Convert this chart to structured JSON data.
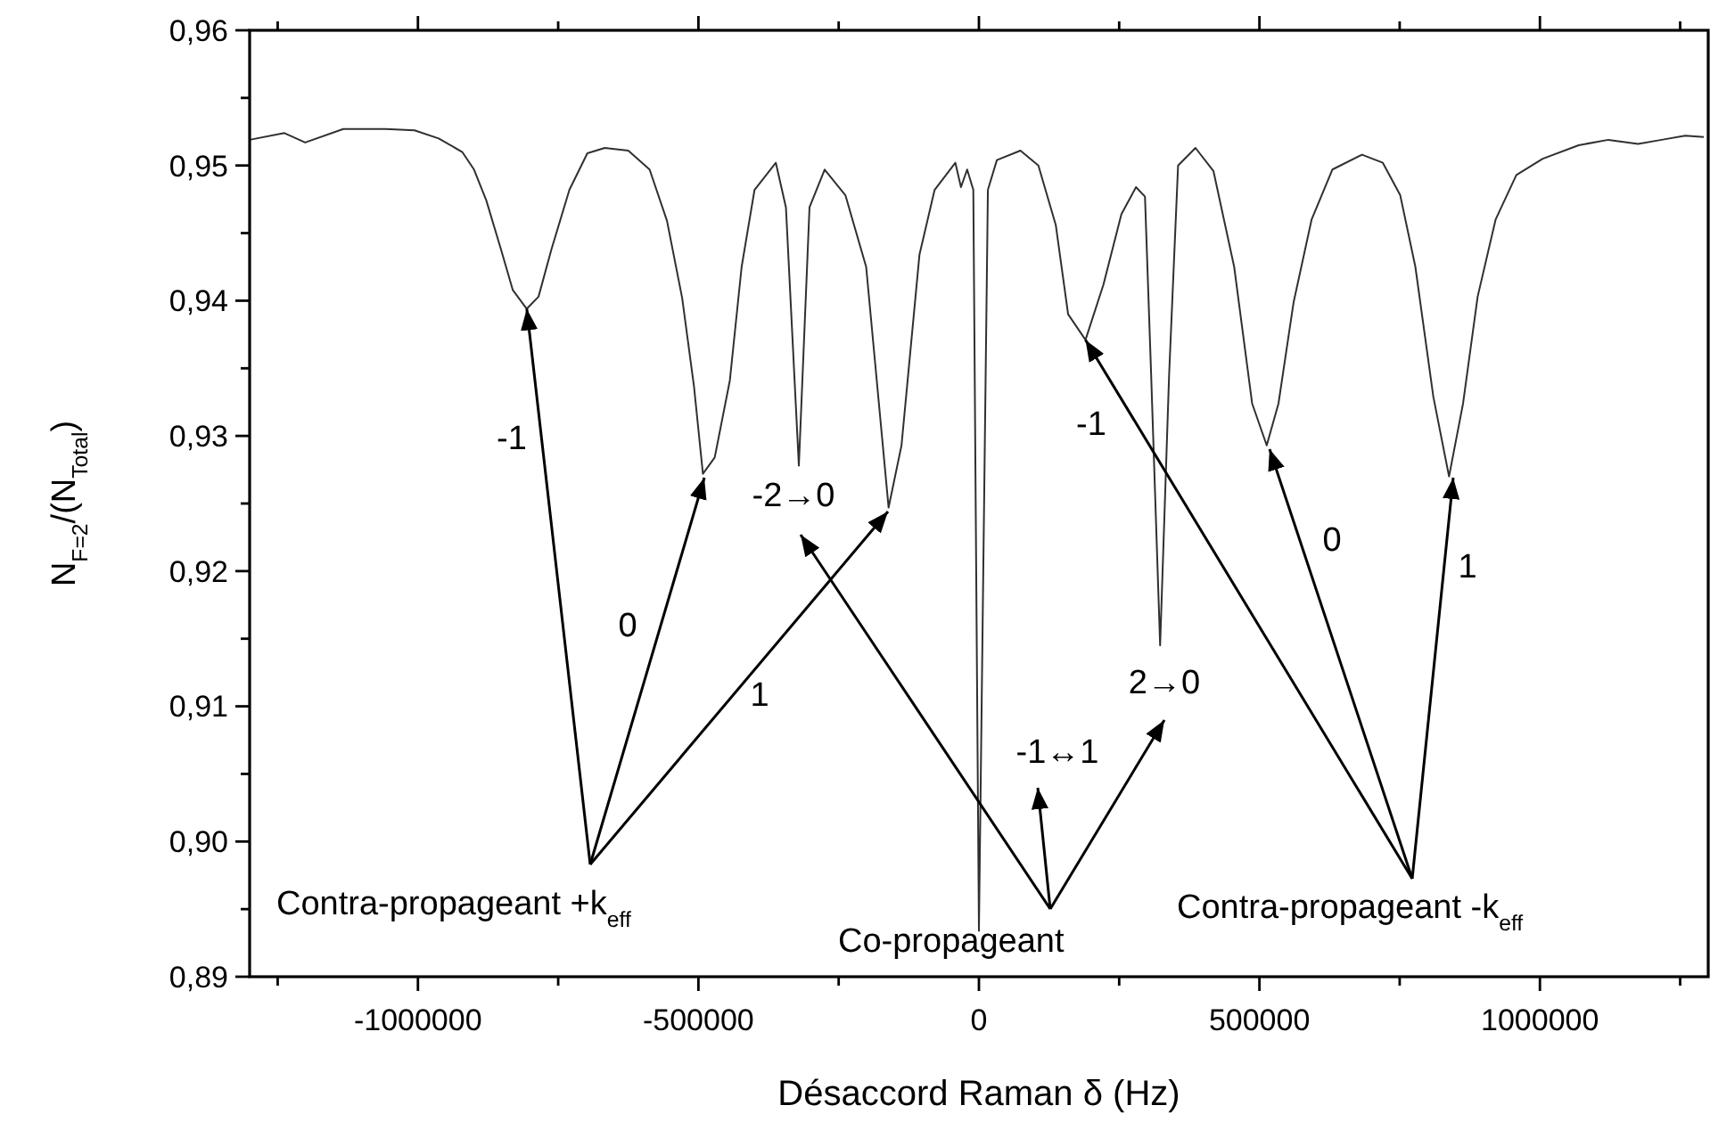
{
  "chart_data": {
    "type": "line",
    "xlabel": "Désaccord Raman δ (Hz)",
    "ylabel": "N$_{F=2}$/(N$_{Total}$)",
    "xlim": [
      -1300000,
      1300000
    ],
    "ylim": [
      0.89,
      0.96
    ],
    "xticks": [
      {
        "value": -1250000,
        "label": null
      },
      -1000000,
      {
        "value": -750000,
        "label": null
      },
      -500000,
      {
        "value": -250000,
        "label": null
      },
      0,
      {
        "value": 250000,
        "label": null
      },
      500000,
      {
        "value": 750000,
        "label": null
      },
      1000000,
      {
        "value": 1250000,
        "label": null
      }
    ],
    "yticks": [
      {
        "value": 0.89,
        "label": "0,89"
      },
      {
        "value": 0.895,
        "label": null
      },
      {
        "value": 0.9,
        "label": "0,90"
      },
      {
        "value": 0.905,
        "label": null
      },
      {
        "value": 0.91,
        "label": "0,91"
      },
      {
        "value": 0.915,
        "label": null
      },
      {
        "value": 0.92,
        "label": "0,92"
      },
      {
        "value": 0.925,
        "label": null
      },
      {
        "value": 0.93,
        "label": "0,93"
      },
      {
        "value": 0.935,
        "label": null
      },
      {
        "value": 0.94,
        "label": "0,94"
      },
      {
        "value": 0.945,
        "label": null
      },
      {
        "value": 0.95,
        "label": "0,95"
      },
      {
        "value": 0.955,
        "label": null
      },
      {
        "value": 0.96,
        "label": "0,96"
      }
    ],
    "grid": false,
    "marker": "none",
    "line_style": "solid",
    "annotations": [
      "-1",
      "0",
      "1",
      "-2→0",
      {
        "text": "Contra-propageant +k$_{eff}$",
        "x": -806000,
        "y": 0.9394
      },
      "Co-propageant",
      "-1↔1",
      "2→0",
      "-1",
      "0",
      "1",
      {
        "text": "Contra-propageant -k$_{eff}$",
        "x": 190000,
        "y": 0.9371
      }
    ],
    "series": [
      {
        "color": "#303030",
        "x": [
          -1300000,
          -1238000,
          -1201000,
          -1133000,
          -1058000,
          -1006000,
          -963000,
          -921000,
          -900000,
          -878000,
          -852000,
          -831000,
          -806000,
          -785000,
          -762000,
          -730000,
          -698000,
          -667000,
          -625000,
          -587000,
          -556000,
          -529000,
          -508000,
          -492000,
          -471000,
          -444000,
          -423000,
          -400000,
          -362000,
          -344000,
          -321000,
          -302000,
          -275000,
          -238000,
          -201000,
          -161000,
          -138000,
          -106000,
          -79000,
          -42000,
          -32000,
          -21000,
          -10000,
          0,
          16000,
          32000,
          74000,
          106000,
          137000,
          159000,
          190000,
          222000,
          254000,
          280000,
          296000,
          307000,
          323000,
          339000,
          355000,
          386000,
          418000,
          455000,
          487000,
          513000,
          534000,
          561000,
          593000,
          630000,
          683000,
          720000,
          751000,
          778000,
          810000,
          838000,
          863000,
          889000,
          921000,
          958000,
          1005000,
          1069000,
          1122000,
          1175000,
          1217000,
          1259000,
          1292000
        ],
        "values": [
          0.9519,
          0.9524,
          0.9517,
          0.9527,
          0.9527,
          0.9526,
          0.952,
          0.951,
          0.9497,
          0.9474,
          0.9438,
          0.9408,
          0.9394,
          0.9403,
          0.9438,
          0.9482,
          0.9509,
          0.9513,
          0.9511,
          0.9497,
          0.9459,
          0.9402,
          0.9337,
          0.9272,
          0.9284,
          0.9341,
          0.9425,
          0.9482,
          0.9502,
          0.9469,
          0.9278,
          0.9469,
          0.9497,
          0.9478,
          0.9425,
          0.9247,
          0.9293,
          0.9434,
          0.9482,
          0.9502,
          0.9484,
          0.9497,
          0.9482,
          0.8934,
          0.9482,
          0.9504,
          0.9511,
          0.95,
          0.9456,
          0.939,
          0.9371,
          0.9412,
          0.9464,
          0.9484,
          0.9477,
          0.9345,
          0.9145,
          0.9345,
          0.95,
          0.9513,
          0.9496,
          0.9425,
          0.9324,
          0.9293,
          0.9324,
          0.9399,
          0.946,
          0.9497,
          0.9508,
          0.9502,
          0.9478,
          0.9425,
          0.9329,
          0.927,
          0.9324,
          0.9403,
          0.946,
          0.9493,
          0.9505,
          0.9515,
          0.9519,
          0.9516,
          0.9519,
          0.9522,
          0.9521
        ]
      }
    ]
  }
}
